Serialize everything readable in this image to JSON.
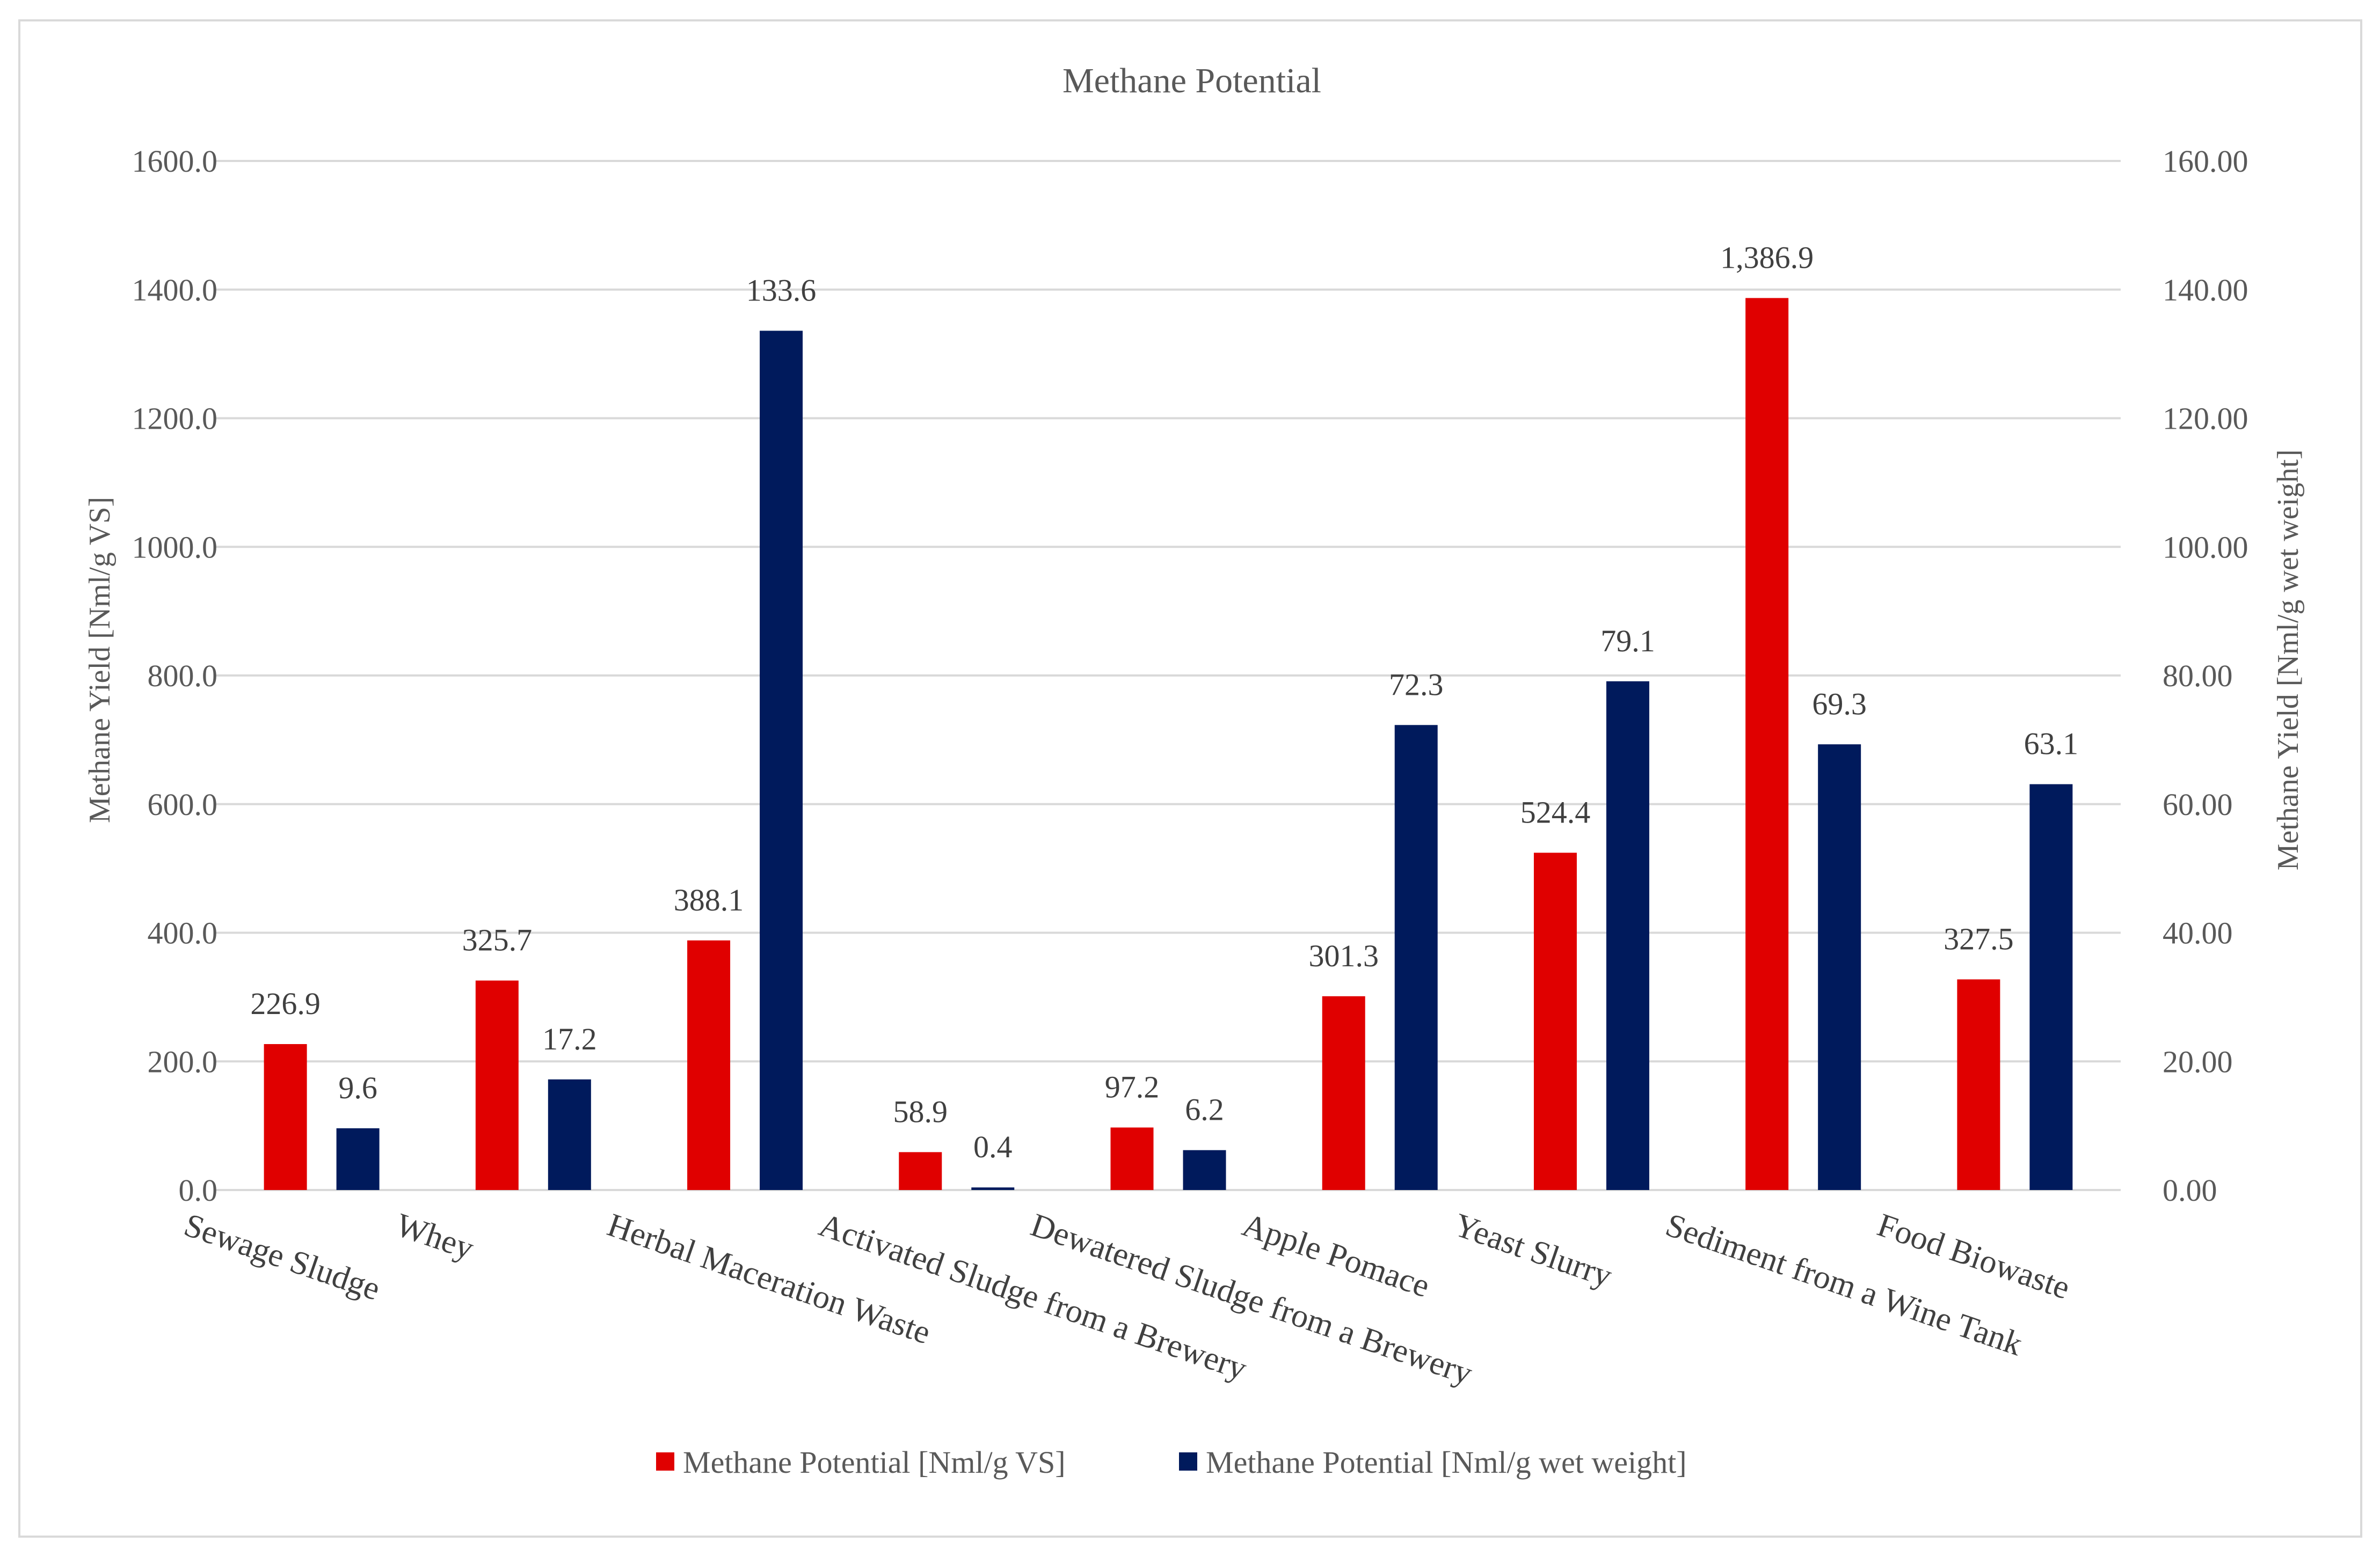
{
  "chart_data": {
    "type": "bar",
    "title": "Methane Potential",
    "categories": [
      "Sewage Sludge",
      "Whey",
      "Herbal Maceration Waste",
      "Activated Sludge from a Brewery",
      "Dewatered Sludge from a Brewery",
      "Apple Pomace",
      "Yeast Slurry",
      "Sediment from a Wine Tank",
      "Food Biowaste"
    ],
    "series": [
      {
        "name": "Methane Potential [Nml/g VS]",
        "axis": "left",
        "color": "#e00000",
        "values": [
          226.9,
          325.7,
          388.1,
          58.9,
          97.2,
          301.3,
          524.4,
          1386.9,
          327.5
        ],
        "labels": [
          "226.9",
          "325.7",
          "388.1",
          "58.9",
          "97.2",
          "301.3",
          "524.4",
          "1,386.9",
          "327.5"
        ]
      },
      {
        "name": "Methane Potential [Nml/g wet weight]",
        "axis": "right",
        "color": "#001a5c",
        "values": [
          9.6,
          17.2,
          133.6,
          0.4,
          6.2,
          72.3,
          79.1,
          69.3,
          63.1
        ],
        "labels": [
          "9.6",
          "17.2",
          "133.6",
          "0.4",
          "6.2",
          "72.3",
          "79.1",
          "69.3",
          "63.1"
        ]
      }
    ],
    "ylabel": "Methane Yield [Nml/g VS]",
    "y2label": "Methane Yield [Nml/g wet weight]",
    "ylim": [
      0,
      1600
    ],
    "y2lim": [
      0,
      160
    ],
    "yticks": [
      "0.0",
      "200.0",
      "400.0",
      "600.0",
      "800.0",
      "1000.0",
      "1200.0",
      "1400.0",
      "1600.0"
    ],
    "y2ticks": [
      "0.00",
      "20.00",
      "40.00",
      "60.00",
      "80.00",
      "100.00",
      "120.00",
      "140.00",
      "160.00"
    ],
    "grid": true,
    "legend_position": "bottom"
  }
}
